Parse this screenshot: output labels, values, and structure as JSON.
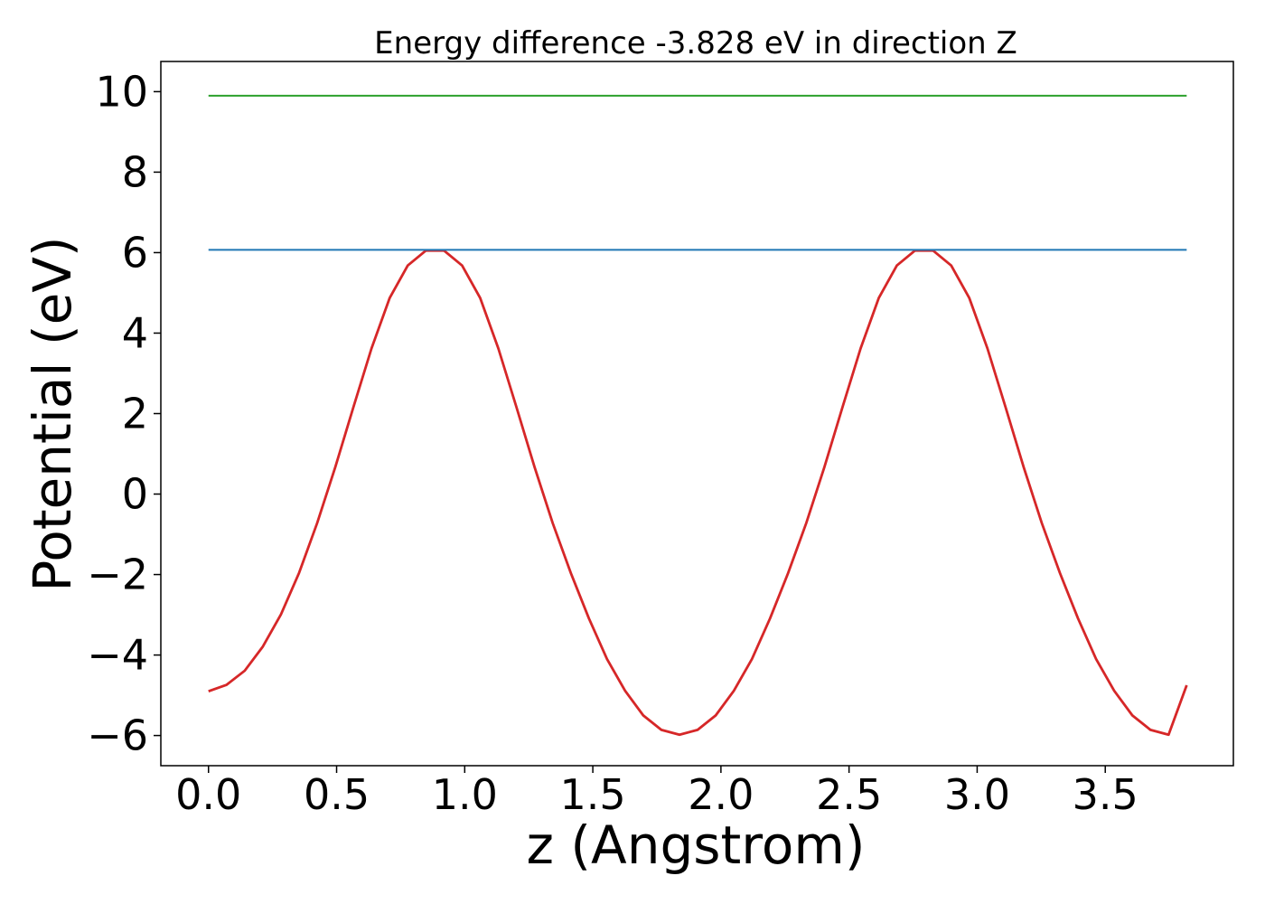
{
  "chart_data": {
    "type": "line",
    "title": "Energy difference -3.828 eV in direction Z",
    "xlabel": "z (Angstrom)",
    "ylabel": "Potential (eV)",
    "xlim": [
      -0.186,
      4.0
    ],
    "ylim": [
      -6.75,
      10.75
    ],
    "grid": false,
    "legend": "none",
    "x_ticks": [
      {
        "value": 0.0,
        "label": "0.0"
      },
      {
        "value": 0.5,
        "label": "0.5"
      },
      {
        "value": 1.0,
        "label": "1.0"
      },
      {
        "value": 1.5,
        "label": "1.5"
      },
      {
        "value": 2.0,
        "label": "2.0"
      },
      {
        "value": 2.5,
        "label": "2.5"
      },
      {
        "value": 3.0,
        "label": "3.0"
      },
      {
        "value": 3.5,
        "label": "3.5"
      }
    ],
    "y_ticks": [
      {
        "value": 10,
        "label": "10"
      },
      {
        "value": 8,
        "label": "8"
      },
      {
        "value": 6,
        "label": "6"
      },
      {
        "value": 4,
        "label": "4"
      },
      {
        "value": 2,
        "label": "2"
      },
      {
        "value": 0,
        "label": "0"
      },
      {
        "value": -2,
        "label": "−2"
      },
      {
        "value": -4,
        "label": "−4"
      },
      {
        "value": -6,
        "label": "−6"
      }
    ],
    "series": [
      {
        "color": "#d62728",
        "x": [
          0.0,
          0.0707,
          0.1414,
          0.2121,
          0.2828,
          0.3535,
          0.4242,
          0.4949,
          0.5656,
          0.6363,
          0.707,
          0.7777,
          0.8484,
          0.9191,
          0.9898,
          1.0605,
          1.1312,
          1.2019,
          1.2726,
          1.3433,
          1.414,
          1.4847,
          1.5554,
          1.6261,
          1.6968,
          1.7675,
          1.8382,
          1.9089,
          1.9796,
          2.0503,
          2.121,
          2.1917,
          2.2624,
          2.3331,
          2.4038,
          2.4745,
          2.5452,
          2.6159,
          2.6866,
          2.7573,
          2.828,
          2.8987,
          2.9694,
          3.0401,
          3.1108,
          3.1815,
          3.2522,
          3.3229,
          3.3936,
          3.4643,
          3.535,
          3.6057,
          3.6764,
          3.7471,
          3.8178
        ],
        "values": [
          -4.9,
          -4.74,
          -4.39,
          -3.79,
          -2.99,
          -1.96,
          -0.72,
          0.67,
          2.16,
          3.62,
          4.87,
          5.68,
          6.05,
          6.05,
          5.68,
          4.87,
          3.62,
          2.16,
          0.67,
          -0.72,
          -1.96,
          -3.09,
          -4.1,
          -4.89,
          -5.5,
          -5.86,
          -5.98,
          -5.86,
          -5.5,
          -4.89,
          -4.1,
          -3.09,
          -1.96,
          -0.72,
          0.67,
          2.16,
          3.62,
          4.87,
          5.68,
          6.05,
          6.05,
          5.68,
          4.87,
          3.62,
          2.16,
          0.67,
          -0.72,
          -1.96,
          -3.09,
          -4.1,
          -4.89,
          -5.5,
          -5.86,
          -5.98,
          -4.75
        ]
      },
      {
        "color": "#1f77b4",
        "x": [
          0.0,
          3.8178
        ],
        "values": [
          6.07,
          6.07
        ]
      },
      {
        "color": "#2ca02c",
        "x": [
          0.0,
          3.8178
        ],
        "values": [
          9.9,
          9.9
        ]
      }
    ]
  }
}
